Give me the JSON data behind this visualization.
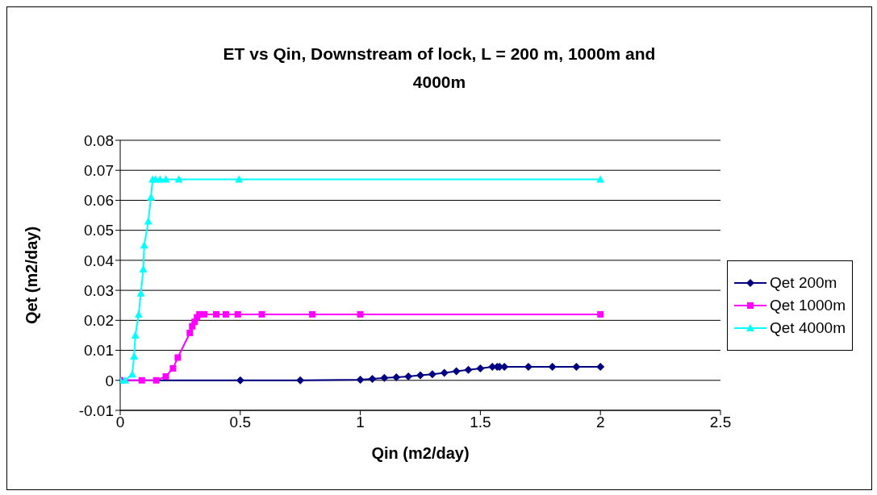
{
  "chart_data": {
    "type": "line",
    "title": "ET vs Qin, Downstream of lock, L = 200 m, 1000m and 4000m",
    "xlabel": "Qin (m2/day)",
    "ylabel": "Qet (m2/day)",
    "xlim": [
      0,
      2.5
    ],
    "xticks": [
      0,
      0.5,
      1,
      1.5,
      2,
      2.5
    ],
    "ylim": [
      -0.01,
      0.08
    ],
    "yticks": [
      -0.01,
      0,
      0.01,
      0.02,
      0.03,
      0.04,
      0.05,
      0.06,
      0.07,
      0.08
    ],
    "grid": "y",
    "legend": "right",
    "series": [
      {
        "name": "Qet 200m",
        "color": "#000080",
        "marker": "diamond",
        "x": [
          0,
          0.5,
          0.75,
          1,
          1.05,
          1.1,
          1.15,
          1.2,
          1.25,
          1.3,
          1.35,
          1.4,
          1.45,
          1.5,
          1.55,
          1.57,
          1.58,
          1.6,
          1.7,
          1.8,
          1.9,
          2
        ],
        "values": [
          0,
          0,
          0,
          0.0002,
          0.0005,
          0.0008,
          0.001,
          0.0013,
          0.0017,
          0.002,
          0.0025,
          0.003,
          0.0035,
          0.004,
          0.0045,
          0.0045,
          0.0045,
          0.0045,
          0.0045,
          0.0045,
          0.0045,
          0.0045
        ]
      },
      {
        "name": "Qet 1000m",
        "color": "#ff00ff",
        "marker": "square",
        "x": [
          0,
          0.09,
          0.15,
          0.19,
          0.22,
          0.24,
          0.29,
          0.3,
          0.31,
          0.32,
          0.33,
          0.35,
          0.4,
          0.44,
          0.49,
          0.59,
          0.8,
          1,
          2
        ],
        "values": [
          0,
          0,
          0,
          0.0013,
          0.004,
          0.0076,
          0.0158,
          0.018,
          0.0195,
          0.021,
          0.022,
          0.022,
          0.022,
          0.022,
          0.022,
          0.022,
          0.022,
          0.022,
          0.022
        ]
      },
      {
        "name": "Qet 4000m",
        "color": "#00ffff",
        "marker": "triangle",
        "x": [
          0,
          0.02,
          0.05,
          0.058,
          0.063,
          0.077,
          0.086,
          0.096,
          0.1,
          0.117,
          0.128,
          0.135,
          0.147,
          0.166,
          0.19,
          0.244,
          0.495,
          2
        ],
        "values": [
          0,
          0,
          0.002,
          0.008,
          0.015,
          0.022,
          0.029,
          0.037,
          0.045,
          0.053,
          0.061,
          0.067,
          0.067,
          0.067,
          0.067,
          0.067,
          0.067,
          0.067
        ]
      }
    ]
  }
}
